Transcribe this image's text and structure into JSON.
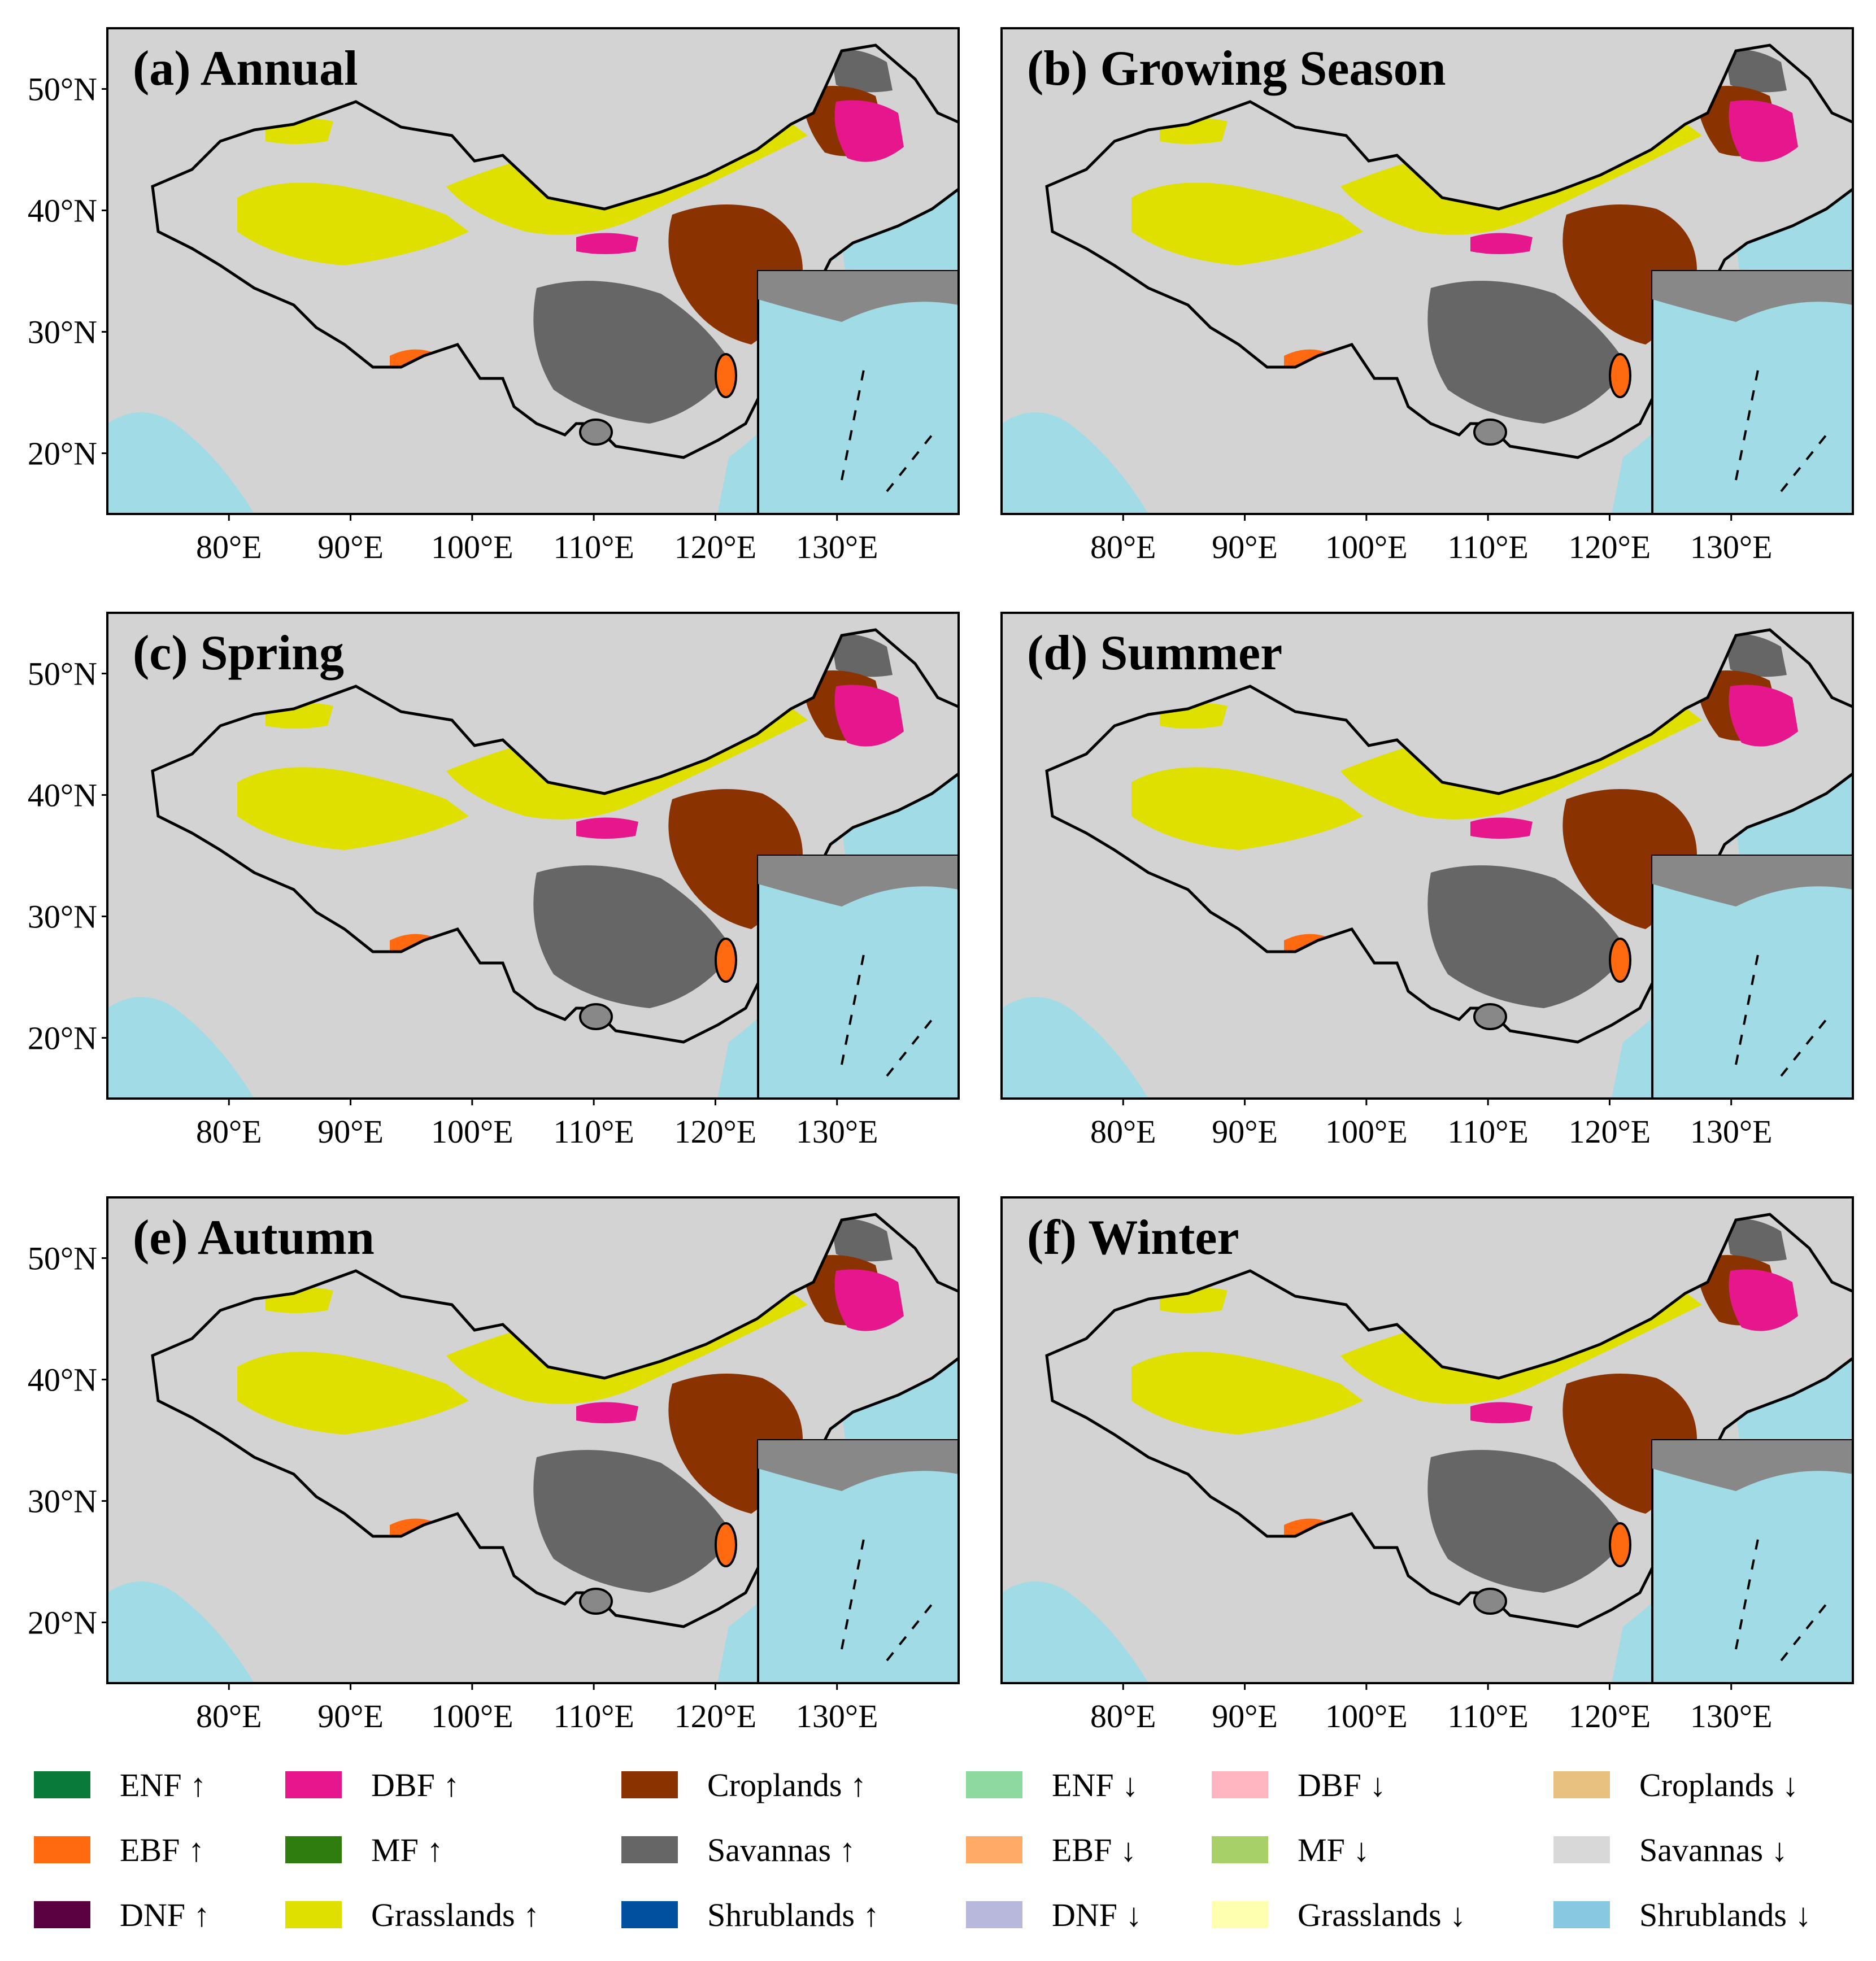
{
  "panels": [
    {
      "title": "(a) Annual",
      "variant": "annual"
    },
    {
      "title": "(b) Growing Season",
      "variant": "growing"
    },
    {
      "title": "(c) Spring",
      "variant": "spring"
    },
    {
      "title": "(d) Summer",
      "variant": "summer"
    },
    {
      "title": "(e) Autumn",
      "variant": "autumn"
    },
    {
      "title": "(f) Winter",
      "variant": "winter"
    }
  ],
  "axes": {
    "lat_labels": [
      "50°N",
      "40°N",
      "30°N",
      "20°N"
    ],
    "lat_values": [
      50,
      40,
      30,
      20
    ],
    "lon_labels": [
      "80°E",
      "90°E",
      "100°E",
      "110°E",
      "120°E",
      "130°E"
    ],
    "lon_values": [
      80,
      90,
      100,
      110,
      120,
      130
    ],
    "lon_range": [
      70,
      140
    ],
    "lat_range": [
      15,
      55
    ]
  },
  "colors": {
    "background_land": "#d3d3d3",
    "ocean": "#a0dbe6",
    "boundary": "#000000"
  },
  "legend": [
    {
      "label": "ENF ↑",
      "color": "#0a7a3a"
    },
    {
      "label": "DBF ↑",
      "color": "#e6168c"
    },
    {
      "label": "Croplands ↑",
      "color": "#8b3300"
    },
    {
      "label": "ENF ↓",
      "color": "#8ed9a0"
    },
    {
      "label": "DBF ↓",
      "color": "#ffb6c1"
    },
    {
      "label": "Croplands ↓",
      "color": "#e8c080"
    },
    {
      "label": "EBF ↑",
      "color": "#ff6a10"
    },
    {
      "label": "MF ↑",
      "color": "#2e7d0e"
    },
    {
      "label": "Savannas ↑",
      "color": "#666666"
    },
    {
      "label": "EBF ↓",
      "color": "#ffaa66"
    },
    {
      "label": "MF ↓",
      "color": "#a8d068"
    },
    {
      "label": "Savannas ↓",
      "color": "#d8d8d8"
    },
    {
      "label": "DNF ↑",
      "color": "#5a0040"
    },
    {
      "label": "Grasslands ↑",
      "color": "#e0e000"
    },
    {
      "label": "Shrublands ↑",
      "color": "#0050a0"
    },
    {
      "label": "DNF ↓",
      "color": "#b8b8dc"
    },
    {
      "label": "Grasslands ↓",
      "color": "#ffffb0"
    },
    {
      "label": "Shrublands ↓",
      "color": "#88c8e0"
    }
  ]
}
